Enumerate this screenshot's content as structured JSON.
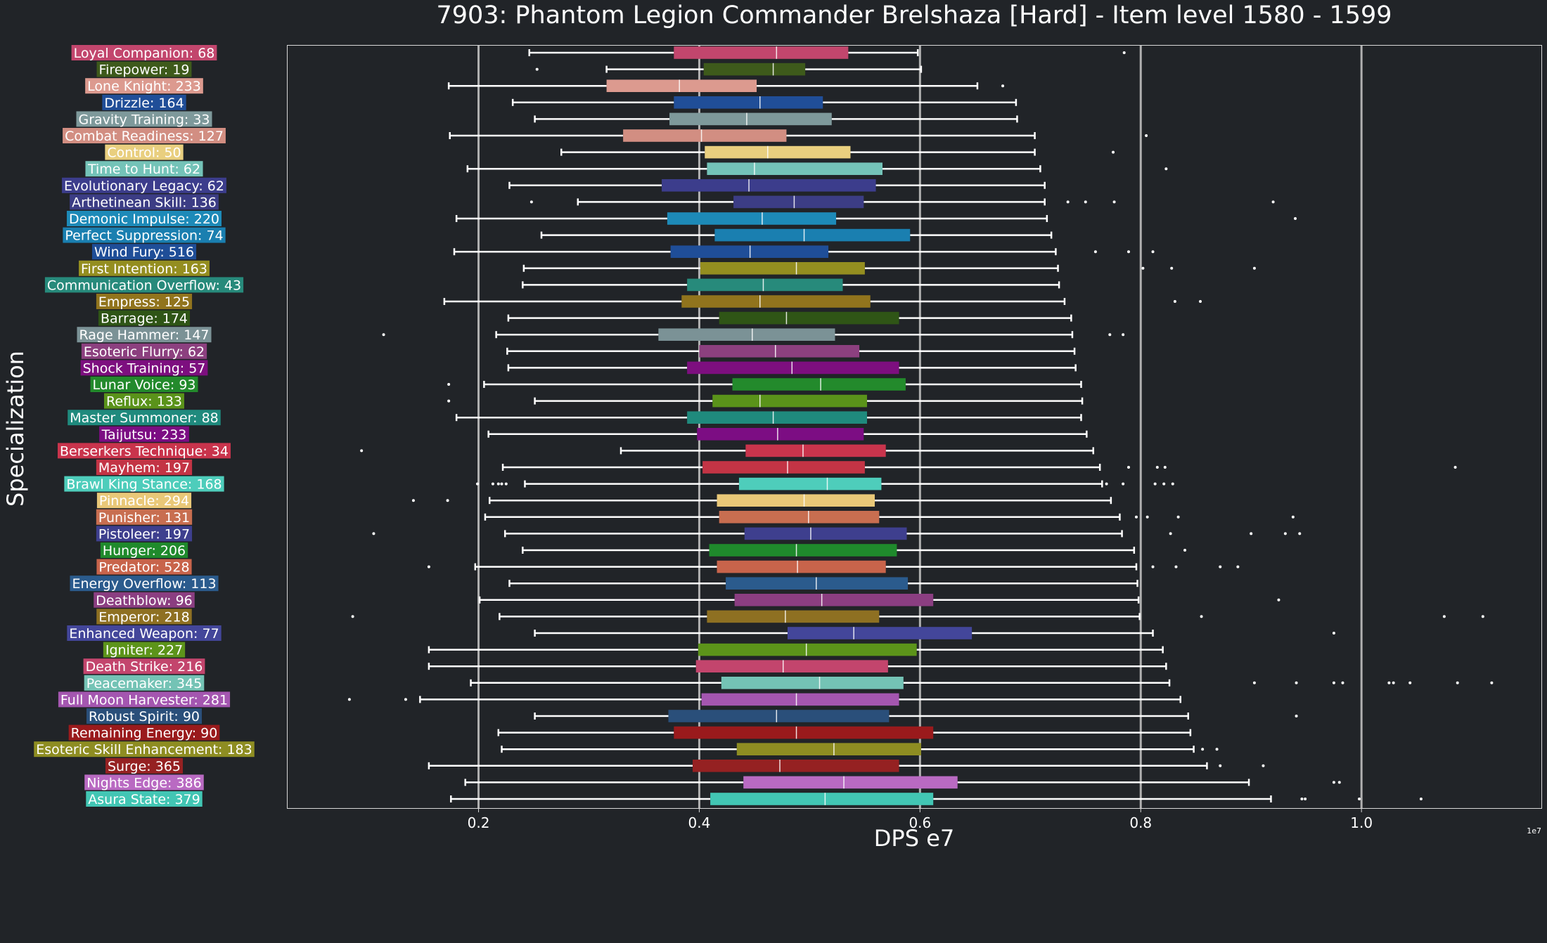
{
  "chart_data": {
    "type": "boxplot",
    "orientation": "horizontal",
    "title": "7903: Phantom Legion Commander Brelshaza [Hard] - Item level 1580 - 1599",
    "xlabel": "DPS e7",
    "ylabel": "Specialization",
    "offset_label": "1e7",
    "x_ticks": [
      0.2,
      0.4,
      0.6,
      0.8,
      1.0
    ],
    "x_tick_labels": [
      "0.2",
      "0.4",
      "0.6",
      "0.8",
      "1.0"
    ],
    "xlim": [
      0.027,
      1.163
    ],
    "grid": "vertical lines at major ticks",
    "series": [
      {
        "label": "Loyal Companion: 68",
        "color": "#c2466d",
        "whisker_low": 0.246,
        "q1": 0.377,
        "median": 0.47,
        "q3": 0.535,
        "whisker_high": 0.598,
        "outliers": [
          0.785
        ]
      },
      {
        "label": "Firepower: 19",
        "color": "#3e5a1b",
        "whisker_low": 0.316,
        "q1": 0.404,
        "median": 0.467,
        "q3": 0.496,
        "whisker_high": 0.601,
        "outliers": [
          0.253
        ]
      },
      {
        "label": "Lone Knight: 233",
        "color": "#dc9a8f",
        "whisker_low": 0.173,
        "q1": 0.316,
        "median": 0.382,
        "q3": 0.452,
        "whisker_high": 0.652,
        "outliers": [
          0.675
        ]
      },
      {
        "label": "Drizzle: 164",
        "color": "#204e98",
        "whisker_low": 0.231,
        "q1": 0.377,
        "median": 0.455,
        "q3": 0.512,
        "whisker_high": 0.687,
        "outliers": []
      },
      {
        "label": "Gravity Training: 33",
        "color": "#7e999b",
        "whisker_low": 0.251,
        "q1": 0.373,
        "median": 0.443,
        "q3": 0.52,
        "whisker_high": 0.688,
        "outliers": []
      },
      {
        "label": "Combat Readiness: 127",
        "color": "#d28e82",
        "whisker_low": 0.174,
        "q1": 0.331,
        "median": 0.402,
        "q3": 0.479,
        "whisker_high": 0.704,
        "outliers": [
          0.805
        ]
      },
      {
        "label": "Control: 50",
        "color": "#e9cf7f",
        "whisker_low": 0.275,
        "q1": 0.405,
        "median": 0.462,
        "q3": 0.537,
        "whisker_high": 0.704,
        "outliers": [
          0.775
        ]
      },
      {
        "label": "Time to Hunt: 62",
        "color": "#74c3b8",
        "whisker_low": 0.19,
        "q1": 0.407,
        "median": 0.45,
        "q3": 0.566,
        "whisker_high": 0.709,
        "outliers": [
          0.823
        ]
      },
      {
        "label": "Evolutionary Legacy: 62",
        "color": "#3c3d8c",
        "whisker_low": 0.228,
        "q1": 0.366,
        "median": 0.445,
        "q3": 0.56,
        "whisker_high": 0.713,
        "outliers": []
      },
      {
        "label": "Arthetinean Skill: 136",
        "color": "#3c3d85",
        "whisker_low": 0.29,
        "q1": 0.431,
        "median": 0.486,
        "q3": 0.549,
        "whisker_high": 0.713,
        "outliers": [
          0.248,
          0.734,
          0.75,
          0.776,
          0.92
        ]
      },
      {
        "label": "Demonic Impulse: 220",
        "color": "#1d8ab8",
        "whisker_low": 0.18,
        "q1": 0.371,
        "median": 0.457,
        "q3": 0.524,
        "whisker_high": 0.715,
        "outliers": [
          0.94
        ]
      },
      {
        "label": "Perfect Suppression: 74",
        "color": "#1a7fb0",
        "whisker_low": 0.257,
        "q1": 0.414,
        "median": 0.495,
        "q3": 0.591,
        "whisker_high": 0.719,
        "outliers": []
      },
      {
        "label": "Wind Fury: 516",
        "color": "#1f4e98",
        "whisker_low": 0.178,
        "q1": 0.374,
        "median": 0.446,
        "q3": 0.517,
        "whisker_high": 0.723,
        "outliers": [
          0.759,
          0.789,
          0.811
        ]
      },
      {
        "label": "First Intention: 163",
        "color": "#948e20",
        "whisker_low": 0.241,
        "q1": 0.401,
        "median": 0.488,
        "q3": 0.55,
        "whisker_high": 0.725,
        "outliers": [
          0.802,
          0.828,
          0.903
        ]
      },
      {
        "label": "Communication Overflow: 43",
        "color": "#278a7b",
        "whisker_low": 0.24,
        "q1": 0.389,
        "median": 0.458,
        "q3": 0.53,
        "whisker_high": 0.726,
        "outliers": []
      },
      {
        "label": "Empress: 125",
        "color": "#91741d",
        "whisker_low": 0.169,
        "q1": 0.384,
        "median": 0.455,
        "q3": 0.555,
        "whisker_high": 0.731,
        "outliers": [
          0.831,
          0.854
        ]
      },
      {
        "label": "Barrage: 174",
        "color": "#2f5516",
        "whisker_low": 0.227,
        "q1": 0.418,
        "median": 0.479,
        "q3": 0.581,
        "whisker_high": 0.737,
        "outliers": []
      },
      {
        "label": "Rage Hammer: 147",
        "color": "#7b9296",
        "whisker_low": 0.216,
        "q1": 0.363,
        "median": 0.448,
        "q3": 0.523,
        "whisker_high": 0.738,
        "outliers": [
          0.114,
          0.772,
          0.784
        ]
      },
      {
        "label": "Esoteric Flurry: 62",
        "color": "#8c407f",
        "whisker_low": 0.226,
        "q1": 0.4,
        "median": 0.469,
        "q3": 0.545,
        "whisker_high": 0.74,
        "outliers": []
      },
      {
        "label": "Shock Training: 57",
        "color": "#7d0f7f",
        "whisker_low": 0.227,
        "q1": 0.389,
        "median": 0.484,
        "q3": 0.581,
        "whisker_high": 0.741,
        "outliers": []
      },
      {
        "label": "Lunar Voice: 93",
        "color": "#238a2c",
        "whisker_low": 0.205,
        "q1": 0.43,
        "median": 0.51,
        "q3": 0.587,
        "whisker_high": 0.746,
        "outliers": [
          0.173
        ]
      },
      {
        "label": "Reflux: 133",
        "color": "#5a931a",
        "whisker_low": 0.251,
        "q1": 0.412,
        "median": 0.455,
        "q3": 0.552,
        "whisker_high": 0.747,
        "outliers": [
          0.173
        ]
      },
      {
        "label": "Master Summoner: 88",
        "color": "#1f8a7d",
        "whisker_low": 0.18,
        "q1": 0.389,
        "median": 0.467,
        "q3": 0.552,
        "whisker_high": 0.746,
        "outliers": []
      },
      {
        "label": "Taijutsu: 233",
        "color": "#7c0d83",
        "whisker_low": 0.209,
        "q1": 0.398,
        "median": 0.471,
        "q3": 0.549,
        "whisker_high": 0.751,
        "outliers": []
      },
      {
        "label": "Berserkers Technique: 34",
        "color": "#c9344c",
        "whisker_low": 0.329,
        "q1": 0.442,
        "median": 0.494,
        "q3": 0.569,
        "whisker_high": 0.757,
        "outliers": [
          0.094
        ]
      },
      {
        "label": "Mayhem: 197",
        "color": "#c33445",
        "whisker_low": 0.222,
        "q1": 0.403,
        "median": 0.48,
        "q3": 0.55,
        "whisker_high": 0.763,
        "outliers": [
          0.789,
          0.815,
          0.822,
          1.085
        ]
      },
      {
        "label": "Brawl King Stance: 168",
        "color": "#4ecdbb",
        "whisker_low": 0.242,
        "q1": 0.436,
        "median": 0.516,
        "q3": 0.565,
        "whisker_high": 0.765,
        "outliers": [
          0.199,
          0.213,
          0.218,
          0.221,
          0.225,
          0.769,
          0.784,
          0.813,
          0.821,
          0.829
        ]
      },
      {
        "label": "Pinnacle: 294",
        "color": "#e9c878",
        "whisker_low": 0.21,
        "q1": 0.416,
        "median": 0.495,
        "q3": 0.559,
        "whisker_high": 0.773,
        "outliers": [
          0.141,
          0.172
        ]
      },
      {
        "label": "Punisher: 131",
        "color": "#c86e50",
        "whisker_low": 0.206,
        "q1": 0.418,
        "median": 0.499,
        "q3": 0.563,
        "whisker_high": 0.781,
        "outliers": [
          0.796,
          0.806,
          0.834,
          0.938
        ]
      },
      {
        "label": "Pistoleer: 197",
        "color": "#3e3f8e",
        "whisker_low": 0.224,
        "q1": 0.441,
        "median": 0.501,
        "q3": 0.588,
        "whisker_high": 0.783,
        "outliers": [
          0.105,
          0.827,
          0.9,
          0.931,
          0.944
        ]
      },
      {
        "label": "Hunger: 206",
        "color": "#1f8a2c",
        "whisker_low": 0.24,
        "q1": 0.409,
        "median": 0.488,
        "q3": 0.579,
        "whisker_high": 0.794,
        "outliers": [
          0.84
        ]
      },
      {
        "label": "Predator: 528",
        "color": "#c8644b",
        "whisker_low": 0.197,
        "q1": 0.416,
        "median": 0.489,
        "q3": 0.569,
        "whisker_high": 0.796,
        "outliers": [
          0.155,
          0.811,
          0.832,
          0.872,
          0.888
        ]
      },
      {
        "label": "Energy Overflow: 113",
        "color": "#2b5b8d",
        "whisker_low": 0.228,
        "q1": 0.424,
        "median": 0.506,
        "q3": 0.589,
        "whisker_high": 0.797,
        "outliers": []
      },
      {
        "label": "Deathblow: 96",
        "color": "#8b3e81",
        "whisker_low": 0.201,
        "q1": 0.432,
        "median": 0.511,
        "q3": 0.612,
        "whisker_high": 0.798,
        "outliers": [
          0.925
        ]
      },
      {
        "label": "Emperor: 218",
        "color": "#8e7022",
        "whisker_low": 0.219,
        "q1": 0.407,
        "median": 0.478,
        "q3": 0.563,
        "whisker_high": 0.799,
        "outliers": [
          0.086,
          0.855,
          1.075,
          1.11
        ]
      },
      {
        "label": "Enhanced Weapon: 77",
        "color": "#43469a",
        "whisker_low": 0.251,
        "q1": 0.48,
        "median": 0.54,
        "q3": 0.647,
        "whisker_high": 0.811,
        "outliers": [
          0.975
        ]
      },
      {
        "label": "Igniter: 227",
        "color": "#5c941a",
        "whisker_low": 0.155,
        "q1": 0.399,
        "median": 0.497,
        "q3": 0.597,
        "whisker_high": 0.82,
        "outliers": []
      },
      {
        "label": "Death Strike: 216",
        "color": "#c3456d",
        "whisker_low": 0.155,
        "q1": 0.397,
        "median": 0.476,
        "q3": 0.571,
        "whisker_high": 0.823,
        "outliers": []
      },
      {
        "label": "Peacemaker: 345",
        "color": "#74c3b5",
        "whisker_low": 0.193,
        "q1": 0.42,
        "median": 0.509,
        "q3": 0.585,
        "whisker_high": 0.826,
        "outliers": [
          0.903,
          0.941,
          0.975,
          0.983,
          1.025,
          1.029,
          1.044,
          1.087,
          1.118
        ]
      },
      {
        "label": "Full Moon Harvester: 281",
        "color": "#a456b0",
        "whisker_low": 0.147,
        "q1": 0.402,
        "median": 0.488,
        "q3": 0.581,
        "whisker_high": 0.836,
        "outliers": [
          0.083,
          0.134
        ]
      },
      {
        "label": "Robust Spirit: 90",
        "color": "#2a4f7a",
        "whisker_low": 0.251,
        "q1": 0.372,
        "median": 0.47,
        "q3": 0.572,
        "whisker_high": 0.843,
        "outliers": [
          0.941
        ]
      },
      {
        "label": "Remaining Energy: 90",
        "color": "#9a1a1c",
        "whisker_low": 0.218,
        "q1": 0.377,
        "median": 0.488,
        "q3": 0.612,
        "whisker_high": 0.845,
        "outliers": []
      },
      {
        "label": "Esoteric Skill Enhancement: 183",
        "color": "#8e8d22",
        "whisker_low": 0.221,
        "q1": 0.434,
        "median": 0.522,
        "q3": 0.601,
        "whisker_high": 0.848,
        "outliers": [
          0.856,
          0.869
        ]
      },
      {
        "label": "Surge: 365",
        "color": "#952122",
        "whisker_low": 0.155,
        "q1": 0.394,
        "median": 0.473,
        "q3": 0.581,
        "whisker_high": 0.86,
        "outliers": [
          0.872,
          0.911
        ]
      },
      {
        "label": "Nights Edge: 386",
        "color": "#b96ac2",
        "whisker_low": 0.188,
        "q1": 0.44,
        "median": 0.531,
        "q3": 0.634,
        "whisker_high": 0.898,
        "outliers": [
          0.975,
          0.98
        ]
      },
      {
        "label": "Asura State: 379",
        "color": "#42c6b4",
        "whisker_low": 0.175,
        "q1": 0.41,
        "median": 0.514,
        "q3": 0.612,
        "whisker_high": 0.918,
        "outliers": [
          0.946,
          0.949,
          0.998,
          1.054
        ]
      }
    ]
  }
}
